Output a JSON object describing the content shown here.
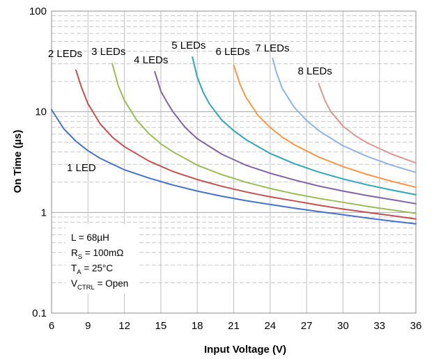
{
  "chart_data": {
    "type": "line",
    "xlabel": "Input Voltage (V)",
    "ylabel": "On Time  (µs)",
    "xlim": [
      6,
      36
    ],
    "ylim": [
      0.1,
      100
    ],
    "yscale": "log",
    "xticks": [
      "6",
      "9",
      "12",
      "15",
      "18",
      "21",
      "24",
      "27",
      "30",
      "33",
      "36"
    ],
    "yticks": [
      "0.1",
      "1",
      "10",
      "100"
    ],
    "grid": true,
    "series": [
      {
        "name": "1 LED",
        "color": "#4472c4",
        "x": [
          6,
          7,
          8,
          9,
          10,
          12,
          14,
          16,
          18,
          20,
          22,
          24,
          26,
          28,
          30,
          32,
          34,
          36
        ],
        "y": [
          10.5,
          6.8,
          5.1,
          4.1,
          3.45,
          2.65,
          2.2,
          1.87,
          1.63,
          1.45,
          1.31,
          1.2,
          1.1,
          1.02,
          0.95,
          0.88,
          0.82,
          0.77
        ]
      },
      {
        "name": "2 LEDs",
        "color": "#c0504d",
        "x": [
          8,
          8.5,
          9,
          10,
          11,
          12,
          14,
          16,
          18,
          20,
          22,
          24,
          26,
          28,
          30,
          32,
          34,
          36
        ],
        "y": [
          26,
          17,
          12,
          7.6,
          5.6,
          4.5,
          3.25,
          2.55,
          2.12,
          1.82,
          1.6,
          1.43,
          1.3,
          1.18,
          1.08,
          1.0,
          0.93,
          0.86
        ]
      },
      {
        "name": "3 LEDs",
        "color": "#9bbb59",
        "x": [
          11,
          11.5,
          12,
          13,
          14,
          15,
          16,
          18,
          20,
          22,
          24,
          26,
          28,
          30,
          32,
          34,
          36
        ],
        "y": [
          30,
          18,
          13,
          8.3,
          6.1,
          4.8,
          4.0,
          2.95,
          2.38,
          2.0,
          1.73,
          1.53,
          1.38,
          1.26,
          1.15,
          1.06,
          0.98
        ]
      },
      {
        "name": "4 LEDs",
        "color": "#8064a2",
        "x": [
          14.5,
          15,
          15.5,
          16,
          17,
          18,
          20,
          22,
          24,
          26,
          28,
          30,
          32,
          34,
          36
        ],
        "y": [
          25,
          16,
          12.5,
          10,
          7,
          5.4,
          3.8,
          2.95,
          2.45,
          2.1,
          1.83,
          1.63,
          1.47,
          1.34,
          1.22
        ]
      },
      {
        "name": "5 LEDs",
        "color": "#31a4b8",
        "x": [
          17.6,
          18,
          18.5,
          19,
          20,
          21,
          22,
          24,
          26,
          28,
          30,
          32,
          34,
          36
        ],
        "y": [
          35,
          22,
          15.5,
          12,
          8.3,
          6.5,
          5.3,
          3.85,
          3.05,
          2.52,
          2.15,
          1.88,
          1.67,
          1.5
        ]
      },
      {
        "name": "6 LEDs",
        "color": "#f79646",
        "x": [
          21,
          21.5,
          22,
          23,
          24,
          25,
          26,
          28,
          30,
          32,
          34,
          36
        ],
        "y": [
          29,
          19,
          14,
          9.2,
          7.0,
          5.6,
          4.7,
          3.55,
          2.85,
          2.38,
          2.04,
          1.78
        ]
      },
      {
        "name": "7 LEDs",
        "color": "#8eb4e3",
        "x": [
          24.2,
          24.5,
          25,
          26,
          27,
          28,
          30,
          32,
          34,
          36
        ],
        "y": [
          34,
          25,
          17,
          11,
          8.2,
          6.5,
          4.6,
          3.6,
          2.95,
          2.5
        ]
      },
      {
        "name": "8 LEDs",
        "color": "#da9694",
        "x": [
          28,
          28.5,
          29,
          30,
          31,
          32,
          34,
          36
        ],
        "y": [
          19,
          13,
          10,
          7.2,
          5.8,
          4.9,
          3.8,
          3.1
        ]
      }
    ],
    "annotations": [
      {
        "id": "L",
        "parts": [
          [
            "L = 68µH",
            ""
          ]
        ]
      },
      {
        "id": "RS",
        "parts": [
          [
            "R",
            ""
          ],
          [
            "S",
            "sub"
          ],
          [
            " = 100mΩ",
            ""
          ]
        ]
      },
      {
        "id": "TA",
        "parts": [
          [
            "T",
            ""
          ],
          [
            "A",
            "sub"
          ],
          [
            " = 25°C",
            ""
          ]
        ]
      },
      {
        "id": "VCTRL",
        "parts": [
          [
            "V",
            ""
          ],
          [
            "CTRL",
            "sub"
          ],
          [
            " = Open",
            ""
          ]
        ]
      }
    ]
  }
}
